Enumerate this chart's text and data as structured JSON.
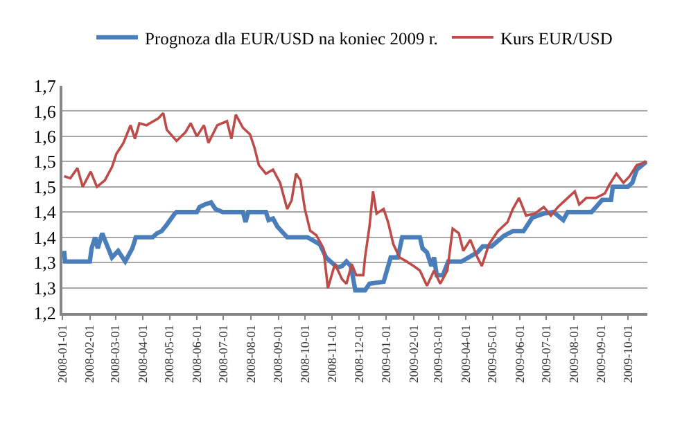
{
  "chart_data": {
    "type": "line",
    "legend": "top",
    "grid": "y",
    "line_style": "solid",
    "marker": "none",
    "ylim": [
      1.2,
      1.65
    ],
    "yticks": [
      {
        "value": 1.2,
        "label": "1,2"
      },
      {
        "value": 1.25,
        "label": "1,3"
      },
      {
        "value": 1.3,
        "label": "1,3"
      },
      {
        "value": 1.35,
        "label": "1,4"
      },
      {
        "value": 1.4,
        "label": "1,4"
      },
      {
        "value": 1.45,
        "label": "1,5"
      },
      {
        "value": 1.5,
        "label": "1,5"
      },
      {
        "value": 1.55,
        "label": "1,6"
      },
      {
        "value": 1.6,
        "label": "1,6"
      },
      {
        "value": 1.65,
        "label": "1,7"
      }
    ],
    "xlim": [
      "2008-01-01",
      "2009-10-23"
    ],
    "xticks": [
      "2008-01-01",
      "2008-02-01",
      "2008-03-01",
      "2008-04-01",
      "2008-05-01",
      "2008-06-01",
      "2008-07-01",
      "2008-08-01",
      "2008-09-01",
      "2008-10-01",
      "2008-11-01",
      "2008-12-01",
      "2009-01-01",
      "2009-02-01",
      "2009-03-01",
      "2009-04-01",
      "2009-05-01",
      "2009-06-01",
      "2009-07-01",
      "2009-08-01",
      "2009-09-01",
      "2009-10-01"
    ],
    "series": [
      {
        "name": "Prognoza dla EUR/USD na koniec 2009 r.",
        "color": "#4a7ebb",
        "x": [
          "2008-01-03",
          "2008-01-04",
          "2008-02-01",
          "2008-02-03",
          "2008-02-07",
          "2008-02-10",
          "2008-02-15",
          "2008-02-20",
          "2008-02-26",
          "2008-03-04",
          "2008-03-12",
          "2008-03-20",
          "2008-03-24",
          "2008-04-12",
          "2008-04-17",
          "2008-04-22",
          "2008-04-28",
          "2008-05-07",
          "2008-05-09",
          "2008-06-01",
          "2008-06-04",
          "2008-06-10",
          "2008-06-17",
          "2008-06-22",
          "2008-06-30",
          "2008-07-23",
          "2008-07-26",
          "2008-07-29",
          "2008-08-18",
          "2008-08-21",
          "2008-08-26",
          "2008-08-31",
          "2008-09-11",
          "2008-10-04",
          "2008-10-18",
          "2008-10-25",
          "2008-10-30",
          "2008-11-07",
          "2008-11-12",
          "2008-11-17",
          "2008-11-22",
          "2008-11-27",
          "2008-12-08",
          "2008-12-13",
          "2008-12-29",
          "2009-01-06",
          "2009-01-14",
          "2009-01-19",
          "2009-02-08",
          "2009-02-11",
          "2009-02-16",
          "2009-02-21",
          "2009-02-24",
          "2009-02-27",
          "2009-03-06",
          "2009-03-12",
          "2009-03-27",
          "2009-04-04",
          "2009-04-14",
          "2009-04-20",
          "2009-04-30",
          "2009-05-14",
          "2009-05-24",
          "2009-06-05",
          "2009-06-15",
          "2009-06-28",
          "2009-07-09",
          "2009-07-20",
          "2009-07-25",
          "2009-08-21",
          "2009-08-26",
          "2009-09-02",
          "2009-09-12",
          "2009-09-14",
          "2009-10-01",
          "2009-10-06",
          "2009-10-11",
          "2009-10-22"
        ],
        "values": [
          1.323,
          1.302,
          1.302,
          1.328,
          1.35,
          1.328,
          1.358,
          1.336,
          1.31,
          1.323,
          1.302,
          1.328,
          1.35,
          1.35,
          1.358,
          1.362,
          1.375,
          1.397,
          1.4,
          1.4,
          1.41,
          1.415,
          1.419,
          1.406,
          1.4,
          1.4,
          1.38,
          1.4,
          1.4,
          1.384,
          1.387,
          1.371,
          1.35,
          1.35,
          1.336,
          1.31,
          1.302,
          1.29,
          1.293,
          1.302,
          1.293,
          1.245,
          1.245,
          1.258,
          1.262,
          1.31,
          1.31,
          1.35,
          1.35,
          1.328,
          1.32,
          1.293,
          1.31,
          1.275,
          1.275,
          1.302,
          1.302,
          1.31,
          1.32,
          1.332,
          1.332,
          1.353,
          1.362,
          1.362,
          1.389,
          1.397,
          1.4,
          1.384,
          1.4,
          1.4,
          1.41,
          1.424,
          1.424,
          1.45,
          1.45,
          1.458,
          1.484,
          1.5
        ]
      },
      {
        "name": "Kurs EUR/USD",
        "color": "#be4b48",
        "x": [
          "2008-01-03",
          "2008-01-10",
          "2008-01-18",
          "2008-01-24",
          "2008-02-02",
          "2008-02-09",
          "2008-02-18",
          "2008-02-26",
          "2008-03-02",
          "2008-03-10",
          "2008-03-18",
          "2008-03-23",
          "2008-03-28",
          "2008-04-05",
          "2008-04-18",
          "2008-04-24",
          "2008-04-28",
          "2008-05-09",
          "2008-05-19",
          "2008-05-25",
          "2008-06-01",
          "2008-06-09",
          "2008-06-14",
          "2008-06-24",
          "2008-07-05",
          "2008-07-10",
          "2008-07-15",
          "2008-07-23",
          "2008-07-31",
          "2008-08-05",
          "2008-08-10",
          "2008-08-18",
          "2008-08-26",
          "2008-09-03",
          "2008-09-11",
          "2008-09-16",
          "2008-09-21",
          "2008-09-26",
          "2008-10-01",
          "2008-10-07",
          "2008-10-14",
          "2008-10-22",
          "2008-10-27",
          "2008-11-04",
          "2008-11-12",
          "2008-11-17",
          "2008-11-23",
          "2008-11-28",
          "2008-12-06",
          "2008-12-08",
          "2008-12-13",
          "2008-12-17",
          "2008-12-21",
          "2008-12-29",
          "2009-01-03",
          "2009-01-09",
          "2009-01-16",
          "2009-01-24",
          "2009-02-01",
          "2009-02-08",
          "2009-02-16",
          "2009-02-24",
          "2009-03-03",
          "2009-03-11",
          "2009-03-17",
          "2009-03-24",
          "2009-03-29",
          "2009-04-06",
          "2009-04-14",
          "2009-04-19",
          "2009-04-27",
          "2009-05-07",
          "2009-05-18",
          "2009-05-24",
          "2009-05-31",
          "2009-06-08",
          "2009-06-18",
          "2009-06-28",
          "2009-07-06",
          "2009-07-14",
          "2009-07-25",
          "2009-08-02",
          "2009-08-07",
          "2009-08-15",
          "2009-08-26",
          "2009-09-05",
          "2009-09-10",
          "2009-09-18",
          "2009-09-26",
          "2009-10-03",
          "2009-10-11",
          "2009-10-22"
        ],
        "values": [
          1.471,
          1.467,
          1.487,
          1.45,
          1.48,
          1.45,
          1.463,
          1.489,
          1.515,
          1.537,
          1.572,
          1.545,
          1.576,
          1.572,
          1.585,
          1.596,
          1.563,
          1.541,
          1.558,
          1.576,
          1.55,
          1.572,
          1.537,
          1.572,
          1.58,
          1.545,
          1.593,
          1.567,
          1.554,
          1.528,
          1.493,
          1.476,
          1.484,
          1.458,
          1.406,
          1.423,
          1.476,
          1.463,
          1.406,
          1.363,
          1.354,
          1.328,
          1.249,
          1.297,
          1.267,
          1.258,
          1.297,
          1.275,
          1.275,
          1.31,
          1.371,
          1.441,
          1.397,
          1.406,
          1.38,
          1.336,
          1.31,
          1.302,
          1.293,
          1.284,
          1.254,
          1.284,
          1.258,
          1.284,
          1.367,
          1.358,
          1.323,
          1.345,
          1.31,
          1.293,
          1.336,
          1.362,
          1.38,
          1.406,
          1.428,
          1.393,
          1.397,
          1.41,
          1.393,
          1.41,
          1.428,
          1.441,
          1.415,
          1.428,
          1.428,
          1.437,
          1.454,
          1.476,
          1.458,
          1.471,
          1.493,
          1.5
        ]
      }
    ]
  }
}
